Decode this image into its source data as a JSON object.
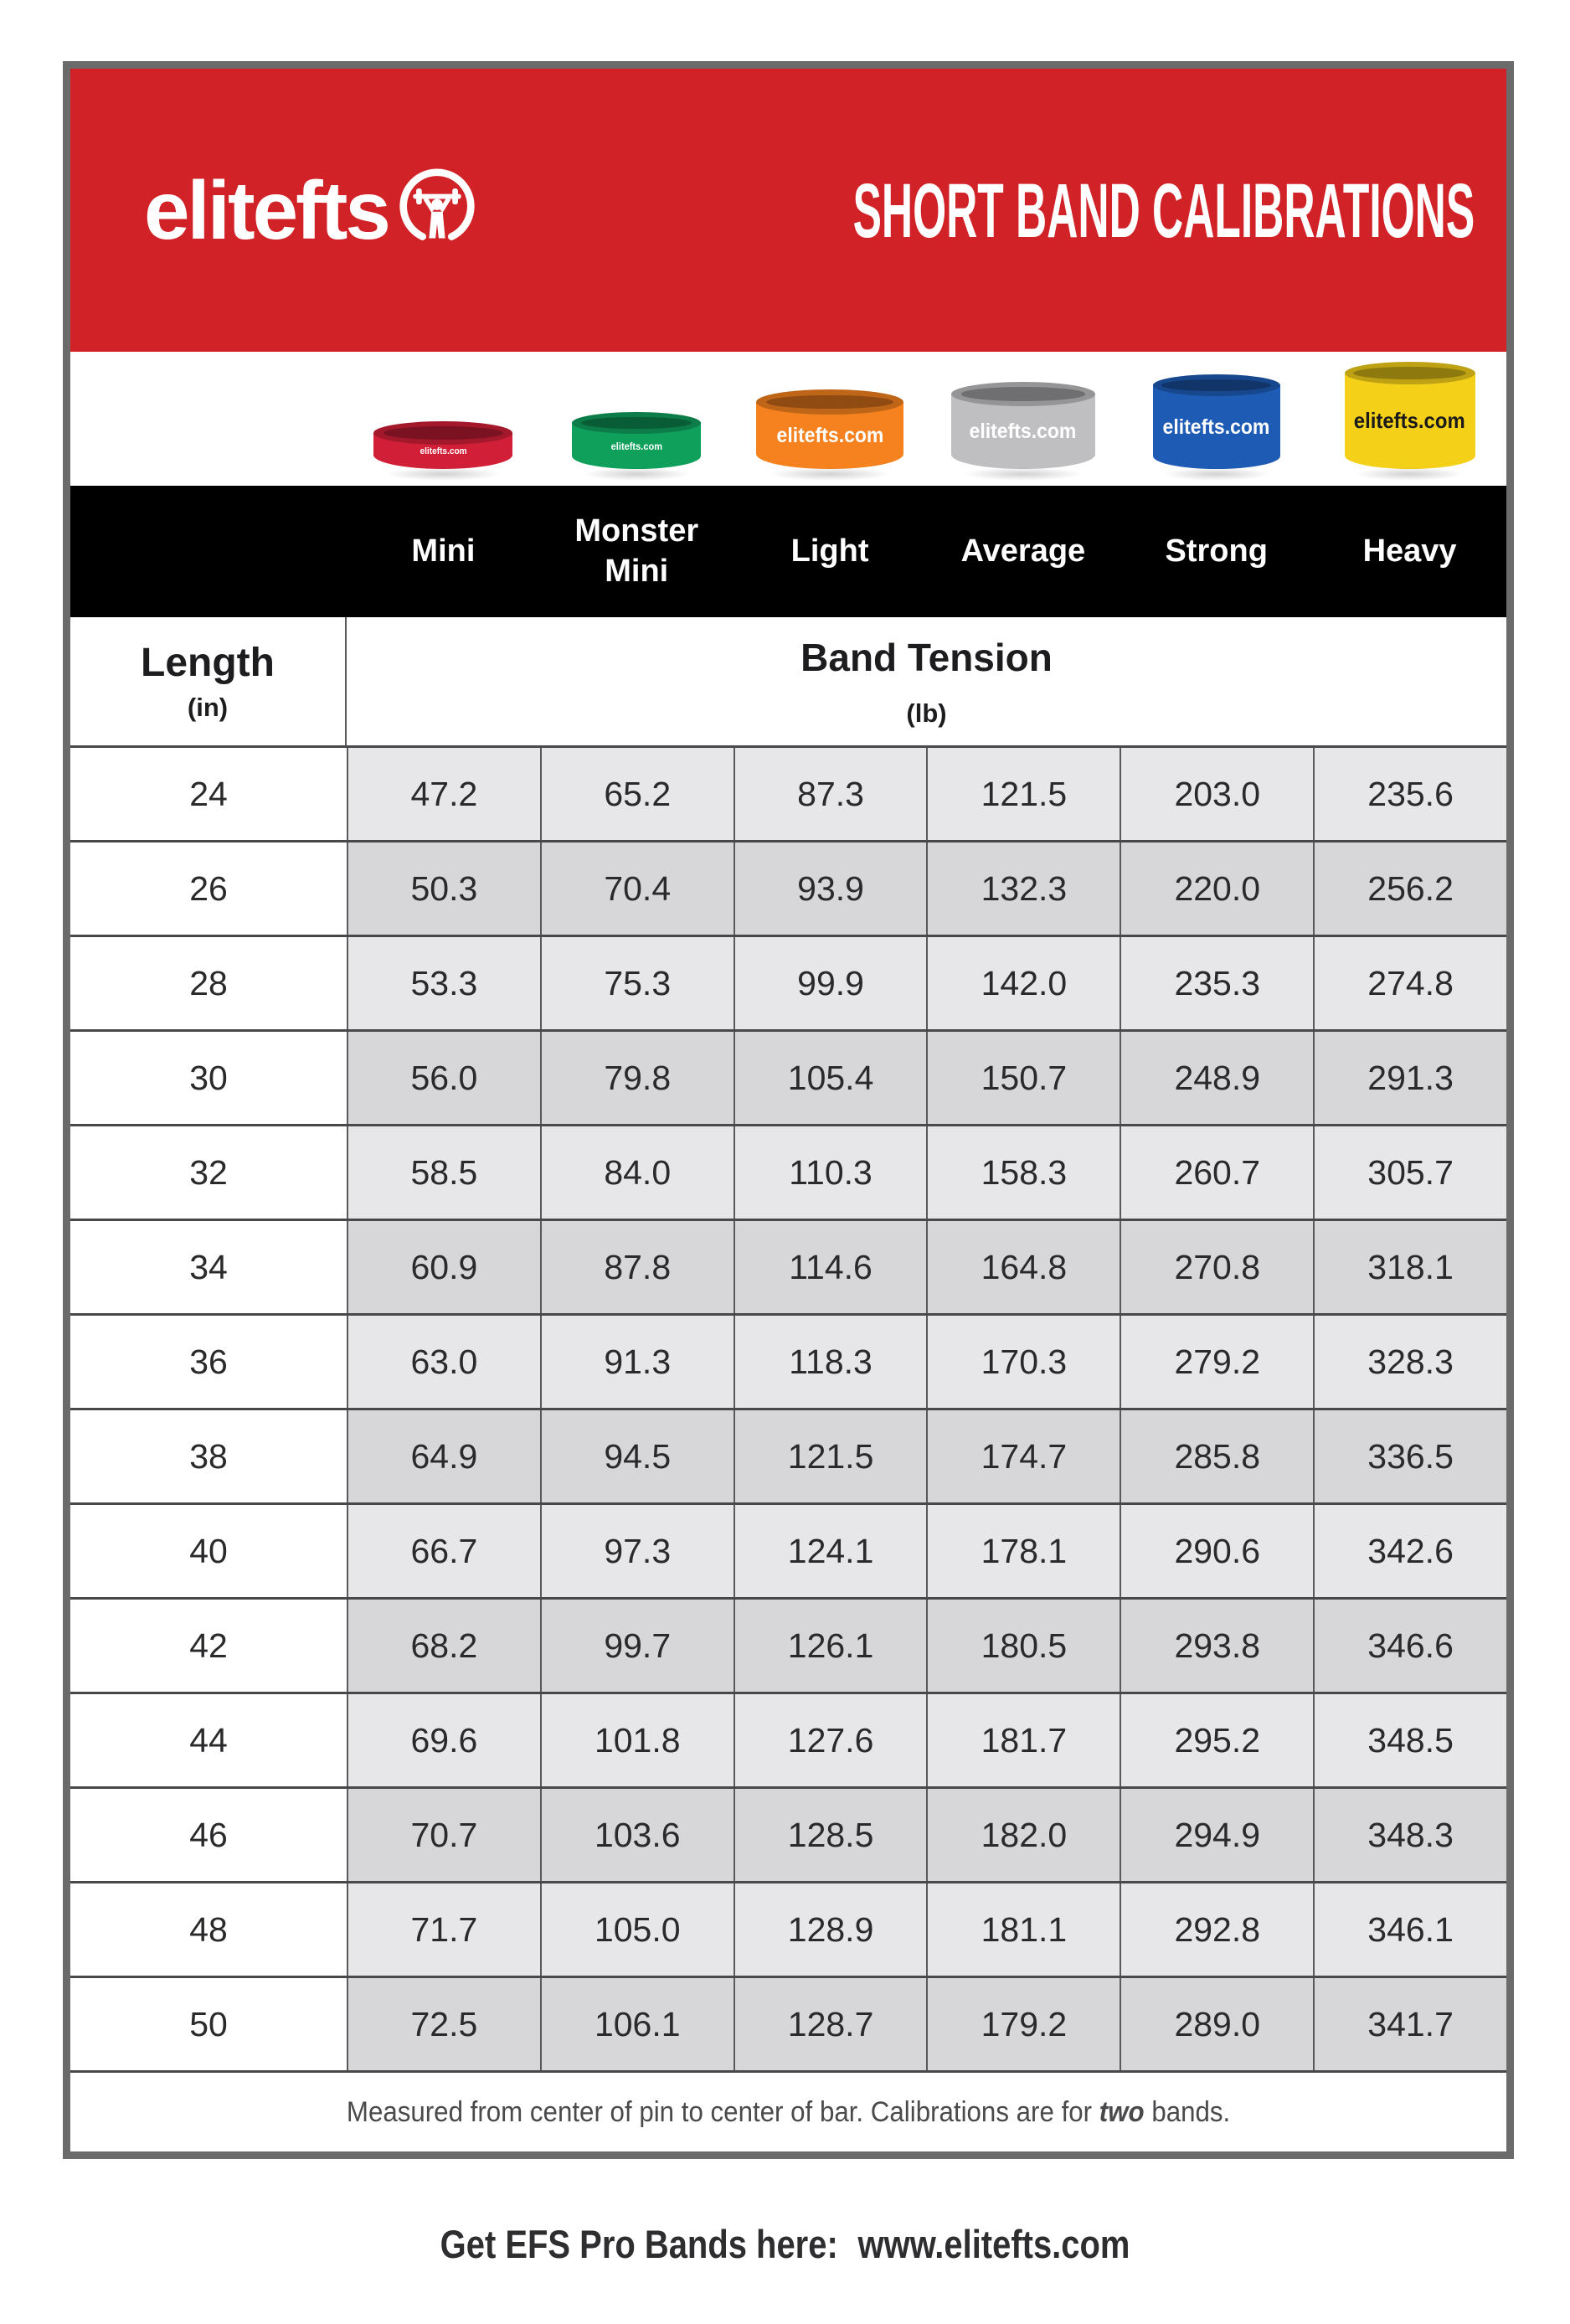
{
  "header": {
    "logo_text": "elitefts",
    "title": "SHORT BAND CALIBRATIONS"
  },
  "bands": [
    {
      "name": "Mini",
      "label": "elitefts.com",
      "color": "#d21f38",
      "text_color": "#ffffff"
    },
    {
      "name": "Monster Mini",
      "label": "elitefts.com",
      "color": "#0fa05c",
      "text_color": "#ffffff"
    },
    {
      "name": "Light",
      "label": "elitefts.com",
      "color": "#f5821f",
      "text_color": "#ffffff"
    },
    {
      "name": "Average",
      "label": "elitefts.com",
      "color": "#bfbfc1",
      "text_color": "#ffffff"
    },
    {
      "name": "Strong",
      "label": "elitefts.com",
      "color": "#1d5bb5",
      "text_color": "#ffffff"
    },
    {
      "name": "Heavy",
      "label": "elitefts.com",
      "color": "#f4d018",
      "text_color": "#1a1a1a"
    }
  ],
  "columns": [
    "Mini",
    "Monster Mini",
    "Light",
    "Average",
    "Strong",
    "Heavy"
  ],
  "row_header": {
    "length_label": "Length",
    "length_unit": "(in)",
    "tension_label": "Band Tension",
    "tension_unit": "(lb)"
  },
  "table": {
    "lengths": [
      "24",
      "26",
      "28",
      "30",
      "32",
      "34",
      "36",
      "38",
      "40",
      "42",
      "44",
      "46",
      "48",
      "50"
    ],
    "rows": [
      [
        "47.2",
        "65.2",
        "87.3",
        "121.5",
        "203.0",
        "235.6"
      ],
      [
        "50.3",
        "70.4",
        "93.9",
        "132.3",
        "220.0",
        "256.2"
      ],
      [
        "53.3",
        "75.3",
        "99.9",
        "142.0",
        "235.3",
        "274.8"
      ],
      [
        "56.0",
        "79.8",
        "105.4",
        "150.7",
        "248.9",
        "291.3"
      ],
      [
        "58.5",
        "84.0",
        "110.3",
        "158.3",
        "260.7",
        "305.7"
      ],
      [
        "60.9",
        "87.8",
        "114.6",
        "164.8",
        "270.8",
        "318.1"
      ],
      [
        "63.0",
        "91.3",
        "118.3",
        "170.3",
        "279.2",
        "328.3"
      ],
      [
        "64.9",
        "94.5",
        "121.5",
        "174.7",
        "285.8",
        "336.5"
      ],
      [
        "66.7",
        "97.3",
        "124.1",
        "178.1",
        "290.6",
        "342.6"
      ],
      [
        "68.2",
        "99.7",
        "126.1",
        "180.5",
        "293.8",
        "346.6"
      ],
      [
        "69.6",
        "101.8",
        "127.6",
        "181.7",
        "295.2",
        "348.5"
      ],
      [
        "70.7",
        "103.6",
        "128.5",
        "182.0",
        "294.9",
        "348.3"
      ],
      [
        "71.7",
        "105.0",
        "128.9",
        "181.1",
        "292.8",
        "346.1"
      ],
      [
        "72.5",
        "106.1",
        "128.7",
        "179.2",
        "289.0",
        "341.7"
      ]
    ]
  },
  "footnote": {
    "prefix": "Measured from center of pin to center of bar. Calibrations are for ",
    "bold": "two",
    "suffix": " bands."
  },
  "footer": {
    "label": "Get EFS Pro Bands here:",
    "url": "www.elitefts.com"
  },
  "colors": {
    "banner_red": "#d12228",
    "header_black": "#000000",
    "row_light": "#e7e7e9",
    "row_dark": "#d7d7d9",
    "frame_gray": "#6b6b6c"
  }
}
